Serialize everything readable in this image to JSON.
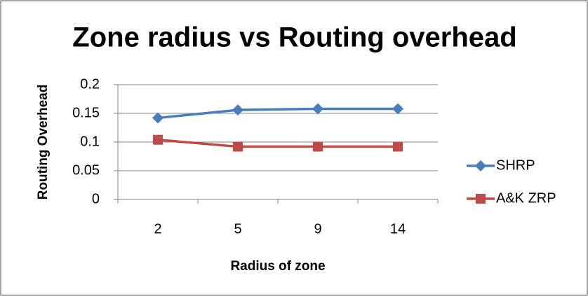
{
  "chart_data": {
    "type": "line",
    "title": "Zone radius vs Routing overhead",
    "x_label": "Radius of zone",
    "y_label": "Routing Overhead",
    "categories": [
      "2",
      "5",
      "9",
      "14"
    ],
    "series": [
      {
        "name": "SHRP",
        "color": "#4a7ebb",
        "marker": "diamond",
        "values": [
          0.142,
          0.156,
          0.158,
          0.158
        ]
      },
      {
        "name": "A&K ZRP",
        "color": "#be4b48",
        "marker": "square",
        "values": [
          0.104,
          0.092,
          0.092,
          0.092
        ]
      }
    ],
    "ylim": [
      0,
      0.2
    ],
    "yticks": [
      0,
      0.05,
      0.1,
      0.15,
      0.2
    ],
    "grid": true,
    "legend": "right"
  }
}
